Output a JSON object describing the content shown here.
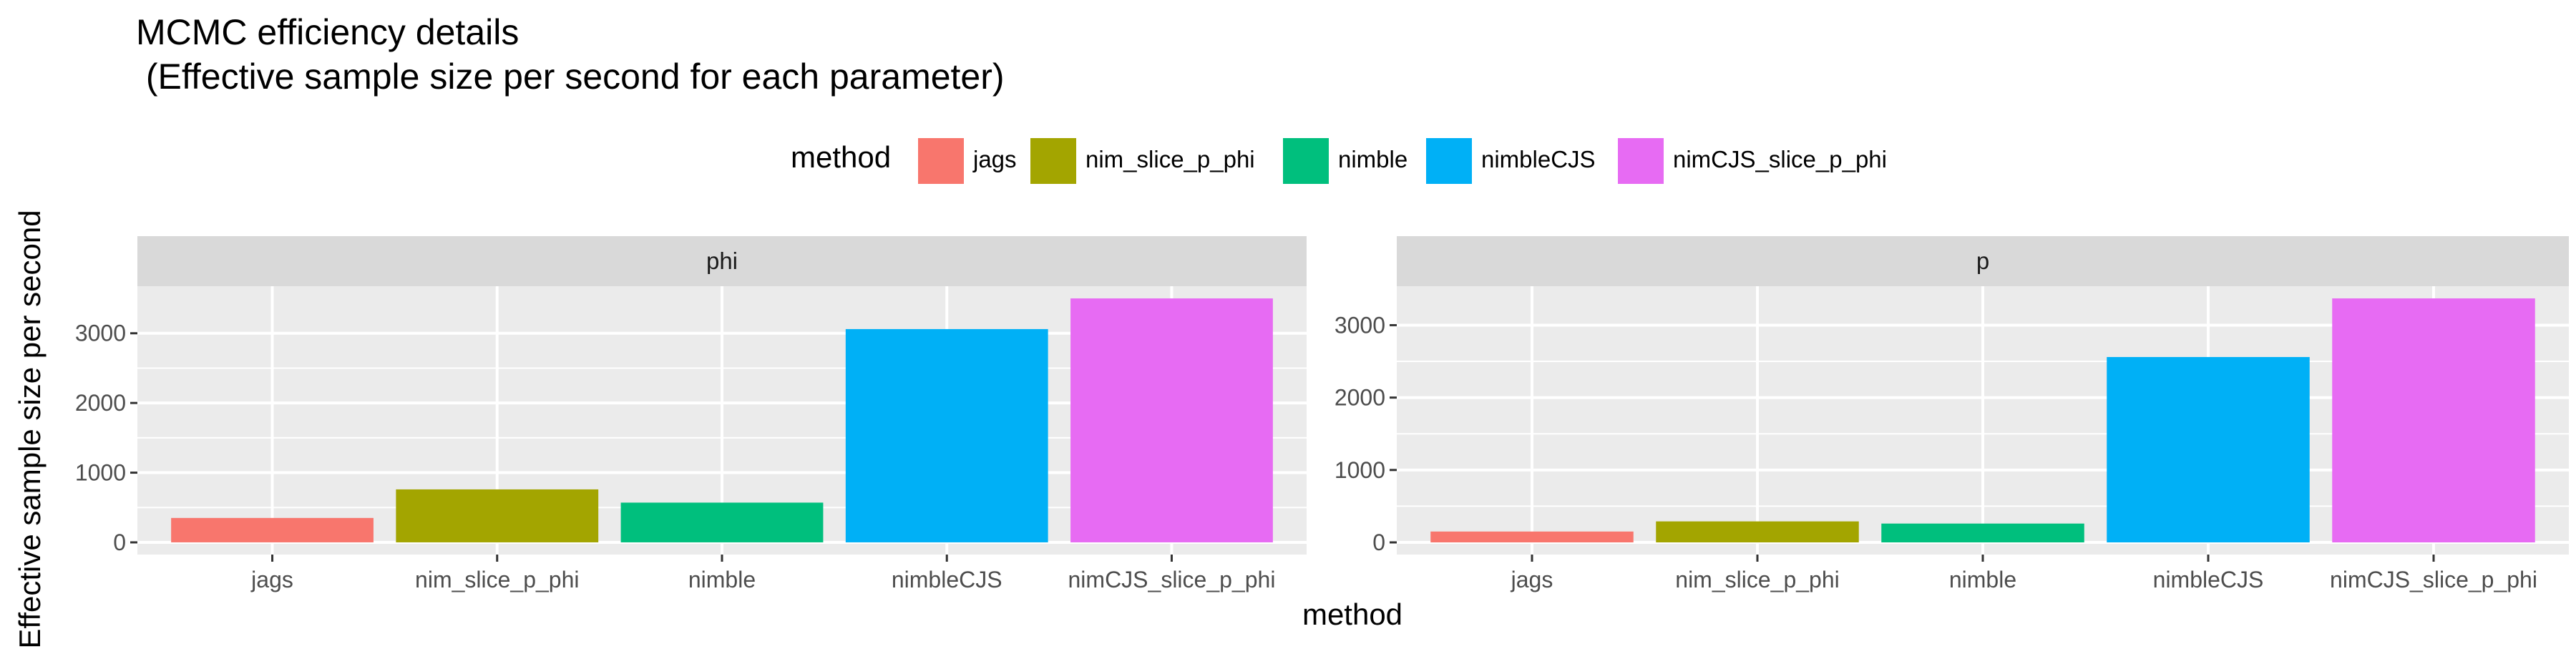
{
  "figure": {
    "title_line1": "MCMC efficiency details",
    "title_line2": " (Effective sample size per second for each parameter)",
    "xlabel": "method",
    "ylabel": "Effective sample size per second"
  },
  "legend": {
    "title": "method",
    "position": "top",
    "items": [
      {
        "label": "jags",
        "color": "#F8766D"
      },
      {
        "label": "nim_slice_p_phi",
        "color": "#A3A500"
      },
      {
        "label": "nimble",
        "color": "#00BF7D"
      },
      {
        "label": "nimbleCJS",
        "color": "#00B0F6"
      },
      {
        "label": "nimCJS_slice_p_phi",
        "color": "#E76BF3"
      }
    ]
  },
  "chart_data": [
    {
      "type": "bar",
      "panel": "phi",
      "categories": [
        "jags",
        "nim_slice_p_phi",
        "nimble",
        "nimbleCJS",
        "nimCJS_slice_p_phi"
      ],
      "values": [
        350,
        760,
        570,
        3060,
        3500
      ],
      "colors": [
        "#F8766D",
        "#A3A500",
        "#00BF7D",
        "#00B0F6",
        "#E76BF3"
      ],
      "yticks": [
        0,
        1000,
        2000,
        3000
      ],
      "ylim": [
        -175,
        3675
      ],
      "grid": true
    },
    {
      "type": "bar",
      "panel": "p",
      "categories": [
        "jags",
        "nim_slice_p_phi",
        "nimble",
        "nimbleCJS",
        "nimCJS_slice_p_phi"
      ],
      "values": [
        150,
        290,
        260,
        2560,
        3370
      ],
      "colors": [
        "#F8766D",
        "#A3A500",
        "#00BF7D",
        "#00B0F6",
        "#E76BF3"
      ],
      "yticks": [
        0,
        1000,
        2000,
        3000
      ],
      "ylim": [
        -168,
        3538
      ],
      "grid": true
    }
  ]
}
